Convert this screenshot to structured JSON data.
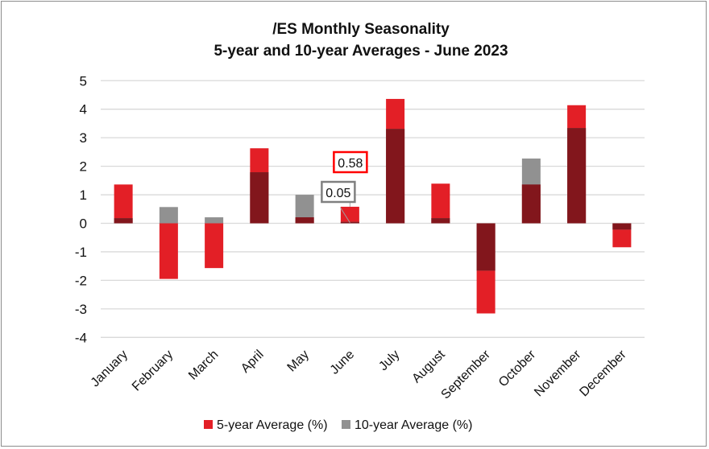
{
  "chart_data": {
    "type": "bar",
    "title": "/ES Monthly Seasonality",
    "subtitle": "5-year and 10-year Averages - June 2023",
    "xlabel": "",
    "ylabel": "",
    "ylim": [
      -4,
      5
    ],
    "yticks": [
      5,
      4,
      3,
      2,
      1,
      0,
      -1,
      -2,
      -3,
      -4
    ],
    "grid": true,
    "legend": "bottom",
    "categories": [
      "January",
      "February",
      "March",
      "April",
      "May",
      "June",
      "July",
      "August",
      "September",
      "October",
      "November",
      "December"
    ],
    "series": [
      {
        "name": "5-year Average (%)",
        "color": "#E31F26",
        "values": [
          1.36,
          -1.95,
          -1.57,
          2.63,
          0.21,
          0.58,
          4.36,
          1.39,
          -3.16,
          1.36,
          4.14,
          -0.84
        ]
      },
      {
        "name": "10-year Average (%)",
        "color": "#919191",
        "values": [
          0.18,
          0.57,
          0.21,
          1.79,
          1.0,
          0.05,
          3.31,
          0.18,
          -1.66,
          2.27,
          3.34,
          -0.22
        ]
      }
    ],
    "overlap_color": "#82161C",
    "annotations": [
      {
        "category": "June",
        "series": "5-year Average (%)",
        "text": "0.58",
        "border_color": "#FF0000"
      },
      {
        "category": "June",
        "series": "10-year Average (%)",
        "text": "0.05",
        "border_color": "#808080"
      }
    ]
  }
}
